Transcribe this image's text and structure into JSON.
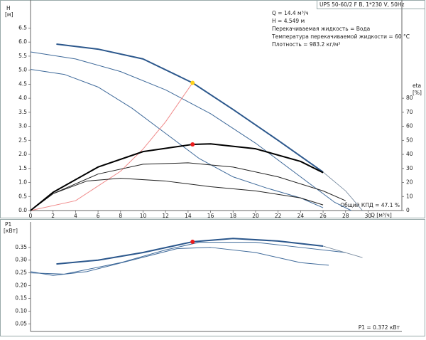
{
  "chart_data": [
    {
      "type": "line",
      "title": "UPS 50-60/2 F B, 1*230 V, 50Hz",
      "annotations": [
        "Q = 14.4 м³/ч",
        "H = 4.549 м",
        "Перекачиваемая жидкость = Вода",
        "Температура перекачиваемой жидкости = 60 °C",
        "Плотность = 983.2 кг/м³"
      ],
      "ylabel": "H",
      "yunit": "[м]",
      "y2label": "eta",
      "y2unit": "[%]",
      "xlabel": "Q [м³/ч]",
      "footnote": "Общий КПД = 47.1 %",
      "xlim": [
        0,
        33
      ],
      "xticks": [
        0,
        2,
        4,
        6,
        8,
        10,
        12,
        14,
        16,
        18,
        20,
        22,
        24,
        26,
        28,
        30
      ],
      "ylim": [
        0,
        7.5
      ],
      "yticks": [
        {
          "value": 0,
          "label": "0.0"
        },
        0.5,
        {
          "value": 1,
          "label": "1.0"
        },
        1.5,
        {
          "value": 2,
          "label": "2.0"
        },
        2.5,
        {
          "value": 3,
          "label": "3.0"
        },
        3.5,
        {
          "value": 4,
          "label": "4.0"
        },
        4.5,
        {
          "value": 5,
          "label": "5.0"
        },
        5.5,
        {
          "value": 6,
          "label": "6.0"
        },
        6.5
      ],
      "y2lim": [
        0,
        150
      ],
      "y2ticks": [
        0,
        10,
        20,
        30,
        40,
        50,
        60,
        70,
        80
      ],
      "series": [
        {
          "color": "#3f6a9a",
          "line_width": 1,
          "x": [
            0,
            3,
            6,
            9,
            12,
            15,
            18,
            21,
            24,
            26
          ],
          "values": [
            5.03,
            4.85,
            4.4,
            3.65,
            2.75,
            1.85,
            1.2,
            0.8,
            0.45,
            0.1
          ]
        },
        {
          "color": "#3f6a9a",
          "line_width": 1,
          "x": [
            0,
            4,
            8,
            12,
            16,
            20,
            24,
            27,
            28.5
          ],
          "values": [
            5.65,
            5.4,
            4.95,
            4.3,
            3.45,
            2.4,
            1.2,
            0.3,
            0
          ]
        },
        {
          "color": "#2b578c",
          "line_width": 2,
          "x": [
            2.3,
            6,
            10,
            14.4,
            18,
            22,
            26
          ],
          "values": [
            5.93,
            5.75,
            5.4,
            4.549,
            3.6,
            2.5,
            1.37
          ]
        },
        {
          "color": "#6a7f96",
          "line_width": 0.8,
          "x": [
            26,
            28,
            29.5
          ],
          "values": [
            1.37,
            0.7,
            0
          ]
        },
        {
          "color": "#f08a8a",
          "line_width": 1,
          "x": [
            0,
            4,
            8,
            10,
            12,
            14.4
          ],
          "values": [
            0,
            0.35,
            1.4,
            2.19,
            3.16,
            4.549
          ]
        },
        {
          "color": "#222222",
          "line_width": 1,
          "axis": "y2",
          "x": [
            0,
            2,
            5,
            8,
            12,
            16,
            20,
            24,
            26
          ],
          "values": [
            0,
            12,
            21,
            23,
            21,
            17,
            14,
            9,
            4
          ]
        },
        {
          "color": "#222222",
          "line_width": 1,
          "axis": "y2",
          "x": [
            0,
            2,
            6,
            10,
            14,
            18,
            22,
            26,
            28
          ],
          "values": [
            0,
            12,
            26,
            33,
            34,
            31,
            24,
            14,
            7
          ]
        },
        {
          "color": "#000000",
          "line_width": 2,
          "axis": "y2",
          "x": [
            0,
            2,
            6,
            10,
            14.4,
            16,
            20,
            24,
            26
          ],
          "values": [
            0,
            13,
            31,
            42,
            47.1,
            47.5,
            44,
            35,
            27
          ]
        },
        {
          "color": "#ffd21a",
          "marker": "dot",
          "x": [
            14.4
          ],
          "values": [
            4.549
          ]
        },
        {
          "color": "#ee1c1c",
          "marker": "dot",
          "axis": "y2",
          "x": [
            14.4
          ],
          "values": [
            47.1
          ]
        }
      ]
    },
    {
      "type": "line",
      "ylabel": "P1",
      "yunit": "[кВт]",
      "footnote": "P1 = 0.372 кВт",
      "xlim": [
        0,
        33
      ],
      "ylim": [
        0.02,
        0.45
      ],
      "yticks": [
        0.05,
        {
          "value": 0.1,
          "label": "0.10"
        },
        0.15,
        {
          "value": 0.2,
          "label": "0.20"
        },
        0.25,
        {
          "value": 0.3,
          "label": "0.30"
        },
        0.35
      ],
      "series": [
        {
          "color": "#3f6a9a",
          "line_width": 1,
          "x": [
            0,
            2,
            5,
            9,
            13,
            16,
            20,
            24,
            26.5
          ],
          "values": [
            0.255,
            0.24,
            0.255,
            0.3,
            0.345,
            0.35,
            0.33,
            0.29,
            0.28
          ]
        },
        {
          "color": "#3f6a9a",
          "line_width": 1,
          "x": [
            0,
            3,
            8,
            12,
            15,
            20,
            24,
            28
          ],
          "values": [
            0.25,
            0.245,
            0.29,
            0.34,
            0.37,
            0.37,
            0.35,
            0.33
          ]
        },
        {
          "color": "#2b578c",
          "line_width": 2,
          "x": [
            2.3,
            6,
            10,
            14.4,
            18,
            22,
            26
          ],
          "values": [
            0.285,
            0.3,
            0.33,
            0.372,
            0.385,
            0.375,
            0.355
          ]
        },
        {
          "color": "#6a7f96",
          "line_width": 0.8,
          "x": [
            26,
            29.5
          ],
          "values": [
            0.355,
            0.31
          ]
        },
        {
          "color": "#ee1c1c",
          "marker": "dot",
          "x": [
            14.4
          ],
          "values": [
            0.372
          ]
        }
      ]
    }
  ]
}
